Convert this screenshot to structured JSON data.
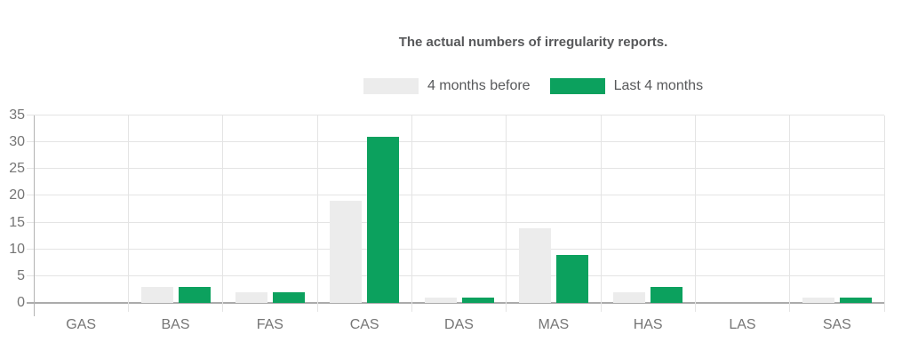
{
  "page": {
    "background": "#ffffff"
  },
  "chart_data": {
    "type": "bar",
    "title": "The actual numbers of irregularity reports.",
    "categories": [
      "GAS",
      "BAS",
      "FAS",
      "CAS",
      "DAS",
      "MAS",
      "HAS",
      "LAS",
      "SAS"
    ],
    "series": [
      {
        "name": "4 months before",
        "color": "#ececec",
        "values": [
          0,
          3,
          2,
          19,
          1,
          14,
          2,
          0,
          1
        ]
      },
      {
        "name": "Last 4 months",
        "color": "#0ca15e",
        "values": [
          0,
          3,
          2,
          31,
          1,
          9,
          3,
          0,
          1
        ]
      }
    ],
    "xlabel": "",
    "ylabel": "",
    "ylim": [
      0,
      35
    ],
    "yticks": [
      0,
      5,
      10,
      15,
      20,
      25,
      30,
      35
    ],
    "grid": true,
    "legend_position": "top-center",
    "axis_text_color": "#757575",
    "title_color": "#57585a",
    "gridline_color": "#e4e4e4",
    "baseline_color": "#ababab"
  }
}
